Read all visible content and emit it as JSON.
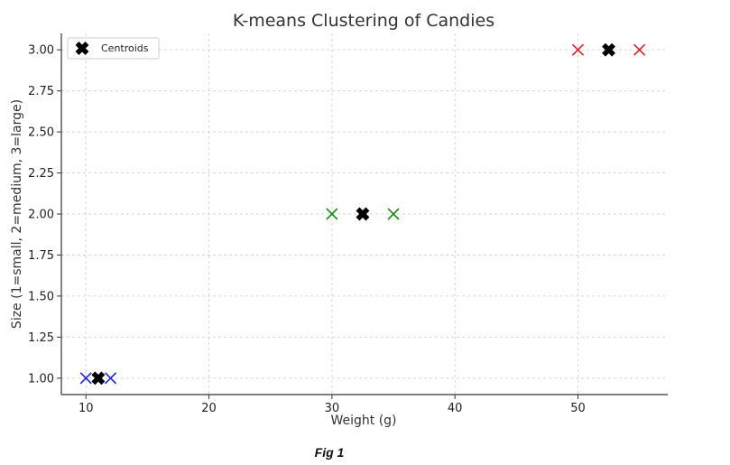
{
  "chart_data": {
    "type": "scatter",
    "title": "K-means Clustering of Candies",
    "xlabel": "Weight (g)",
    "ylabel": "Size (1=small, 2=medium, 3=large)",
    "xlim": [
      8,
      57.3
    ],
    "ylim": [
      0.9,
      3.1
    ],
    "x_ticks": [
      10,
      20,
      30,
      40,
      50
    ],
    "y_ticks": [
      1.0,
      1.25,
      1.5,
      1.75,
      2.0,
      2.25,
      2.5,
      2.75,
      3.0
    ],
    "x_tick_labels": [
      "10",
      "20",
      "30",
      "40",
      "50"
    ],
    "y_tick_labels": [
      "1.00",
      "1.25",
      "1.50",
      "1.75",
      "2.00",
      "2.25",
      "2.50",
      "2.75",
      "3.00"
    ],
    "grid": true,
    "legend_position": "top-left",
    "series": [
      {
        "color": "#1f1fe6",
        "marker": "x",
        "points": [
          {
            "x": 10,
            "y": 1
          },
          {
            "x": 12,
            "y": 1
          }
        ]
      },
      {
        "color": "#1a8c1a",
        "marker": "x",
        "points": [
          {
            "x": 30,
            "y": 2
          },
          {
            "x": 35,
            "y": 2
          }
        ]
      },
      {
        "color": "#e02020",
        "marker": "x",
        "points": [
          {
            "x": 50,
            "y": 3
          },
          {
            "x": 55,
            "y": 3
          }
        ]
      },
      {
        "name": "Centroids",
        "color": "#000000",
        "marker": "X",
        "points": [
          {
            "x": 11,
            "y": 1
          },
          {
            "x": 32.5,
            "y": 2
          },
          {
            "x": 52.5,
            "y": 3
          }
        ]
      }
    ]
  },
  "caption": "Fig 1"
}
